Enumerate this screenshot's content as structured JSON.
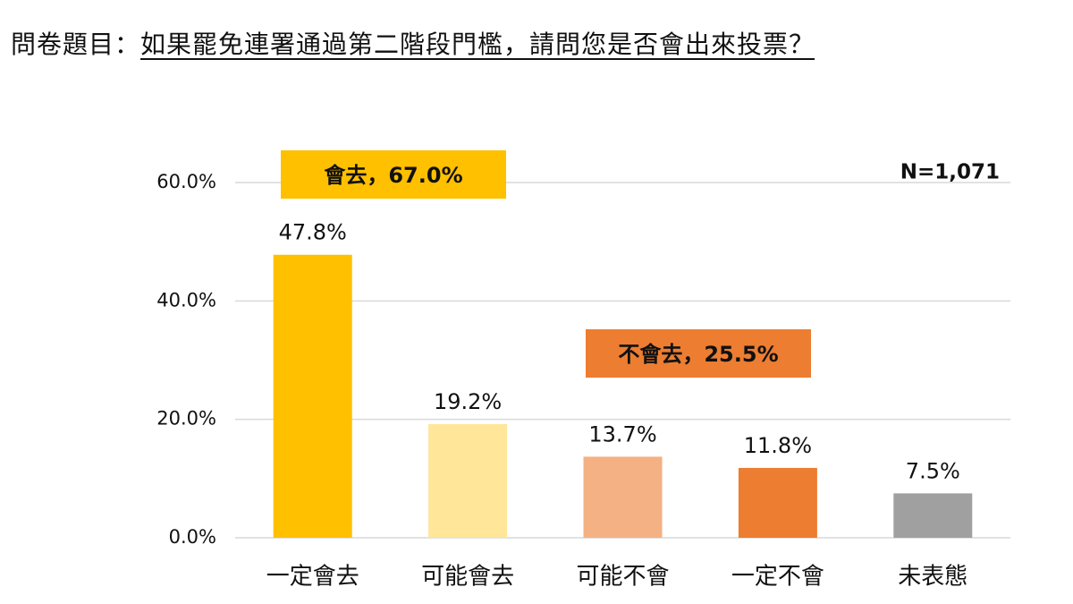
{
  "chart_data": {
    "type": "bar",
    "title_label": "問卷題目：",
    "title": "如果罷免連署通過第二階段門檻，請問您是否會出來投票？",
    "categories": [
      "一定會去",
      "可能會去",
      "可能不會",
      "一定不會",
      "未表態"
    ],
    "values": [
      47.8,
      19.2,
      13.7,
      11.8,
      7.5
    ],
    "value_labels": [
      "47.8%",
      "19.2%",
      "13.7%",
      "11.8%",
      "7.5%"
    ],
    "colors": [
      "#FFC000",
      "#FFE699",
      "#F4B183",
      "#ED7D31",
      "#A0A0A0"
    ],
    "ylim": [
      0,
      60
    ],
    "yticks": [
      {
        "value": 0,
        "label": "0.0%"
      },
      {
        "value": 20,
        "label": "20.0%"
      },
      {
        "value": 40,
        "label": "40.0%"
      },
      {
        "value": 60,
        "label": "60.0%"
      }
    ],
    "grid": true,
    "annotations": [
      {
        "text": "會去，67.0%",
        "color": "#FFC000"
      },
      {
        "text": "不會去，25.5%",
        "color": "#ED7D31"
      }
    ],
    "note": "N=1,071"
  }
}
